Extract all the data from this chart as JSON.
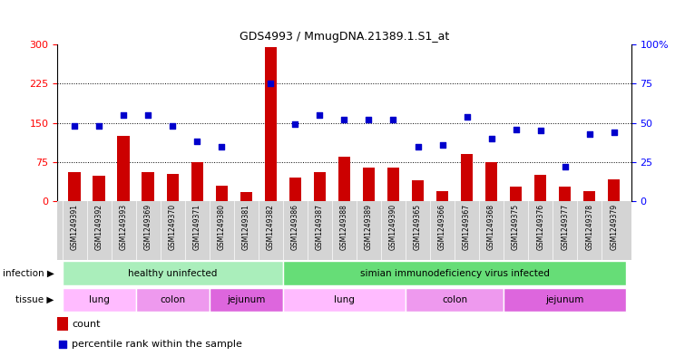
{
  "title": "GDS4993 / MmugDNA.21389.1.S1_at",
  "samples": [
    "GSM1249391",
    "GSM1249392",
    "GSM1249393",
    "GSM1249369",
    "GSM1249370",
    "GSM1249371",
    "GSM1249380",
    "GSM1249381",
    "GSM1249382",
    "GSM1249386",
    "GSM1249387",
    "GSM1249388",
    "GSM1249389",
    "GSM1249390",
    "GSM1249365",
    "GSM1249366",
    "GSM1249367",
    "GSM1249368",
    "GSM1249375",
    "GSM1249376",
    "GSM1249377",
    "GSM1249378",
    "GSM1249379"
  ],
  "counts": [
    55,
    48,
    125,
    55,
    52,
    75,
    30,
    18,
    295,
    45,
    55,
    85,
    65,
    65,
    40,
    20,
    90,
    75,
    28,
    50,
    28,
    20,
    42
  ],
  "percentiles": [
    48,
    48,
    55,
    55,
    48,
    38,
    35,
    null,
    75,
    49,
    55,
    52,
    52,
    52,
    35,
    36,
    54,
    40,
    46,
    45,
    22,
    43,
    44
  ],
  "left_yticks": [
    0,
    75,
    150,
    225,
    300
  ],
  "right_yticks": [
    0,
    25,
    50,
    75,
    100
  ],
  "left_ylim": [
    0,
    300
  ],
  "right_ylim": [
    0,
    100
  ],
  "bar_color": "#cc0000",
  "dot_color": "#0000cc",
  "infection_groups": [
    {
      "label": "healthy uninfected",
      "start": 0,
      "end": 9,
      "color": "#aaeebb"
    },
    {
      "label": "simian immunodeficiency virus infected",
      "start": 9,
      "end": 23,
      "color": "#66dd77"
    }
  ],
  "tissue_groups": [
    {
      "label": "lung",
      "start": 0,
      "end": 3,
      "color": "#ffbbff"
    },
    {
      "label": "colon",
      "start": 3,
      "end": 6,
      "color": "#ee99ee"
    },
    {
      "label": "jejunum",
      "start": 6,
      "end": 9,
      "color": "#dd66dd"
    },
    {
      "label": "lung",
      "start": 9,
      "end": 14,
      "color": "#ffbbff"
    },
    {
      "label": "colon",
      "start": 14,
      "end": 18,
      "color": "#ee99ee"
    },
    {
      "label": "jejunum",
      "start": 18,
      "end": 23,
      "color": "#dd66dd"
    }
  ],
  "infection_label": "infection",
  "tissue_label": "tissue",
  "legend_count": "count",
  "legend_percentile": "percentile rank within the sample",
  "plot_bg": "#ffffff",
  "tick_area_bg": "#d4d4d4",
  "dotted_lines": [
    75,
    150,
    225
  ]
}
